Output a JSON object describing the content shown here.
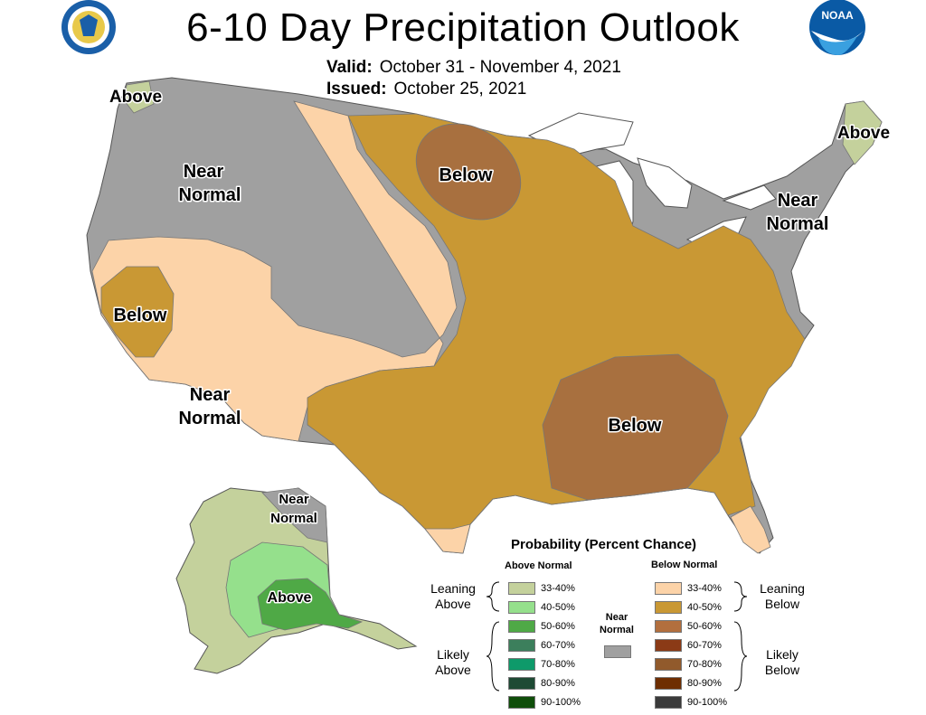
{
  "title": "6-10 Day Precipitation Outlook",
  "valid": {
    "label": "Valid:",
    "value": "October 31 - November 4, 2021"
  },
  "issued": {
    "label": "Issued:",
    "value": "October 25, 2021"
  },
  "logos": {
    "left": "commerce-seal",
    "right": "noaa-logo",
    "right_text": "NOAA"
  },
  "map_labels": {
    "above_nw": "Above",
    "near_normal_west": [
      "Near",
      "Normal"
    ],
    "below_central": "Below",
    "below_california": "Below",
    "near_normal_southwest": [
      "Near",
      "Normal"
    ],
    "below_southeast": "Below",
    "above_ne": "Above",
    "near_normal_ne": [
      "Near",
      "Normal"
    ],
    "alaska_near_normal": [
      "Near",
      "Normal"
    ],
    "alaska_above": "Above"
  },
  "legend": {
    "title": "Probability (Percent Chance)",
    "above_header": "Above Normal",
    "below_header": "Below Normal",
    "near_normal": [
      "Near",
      "Normal"
    ],
    "near_normal_color": "#a0a0a0",
    "leaning_above": [
      "Leaning",
      "Above"
    ],
    "likely_above": [
      "Likely",
      "Above"
    ],
    "leaning_below": [
      "Leaning",
      "Below"
    ],
    "likely_below": [
      "Likely",
      "Below"
    ],
    "above": [
      {
        "label": "33-40%",
        "color": "#c4d19c"
      },
      {
        "label": "40-50%",
        "color": "#95e08c"
      },
      {
        "label": "50-60%",
        "color": "#4fa946"
      },
      {
        "label": "60-70%",
        "color": "#3c7f5c"
      },
      {
        "label": "70-80%",
        "color": "#0e9a6a"
      },
      {
        "label": "80-90%",
        "color": "#1e4a34"
      },
      {
        "label": "90-100%",
        "color": "#0f4e0a"
      }
    ],
    "below": [
      {
        "label": "33-40%",
        "color": "#fcd3a8"
      },
      {
        "label": "40-50%",
        "color": "#c99834"
      },
      {
        "label": "50-60%",
        "color": "#b26f3e"
      },
      {
        "label": "60-70%",
        "color": "#8b3a16"
      },
      {
        "label": "70-80%",
        "color": "#915a2c"
      },
      {
        "label": "80-90%",
        "color": "#6e2e02"
      },
      {
        "label": "90-100%",
        "color": "#3a3a3a"
      }
    ]
  }
}
